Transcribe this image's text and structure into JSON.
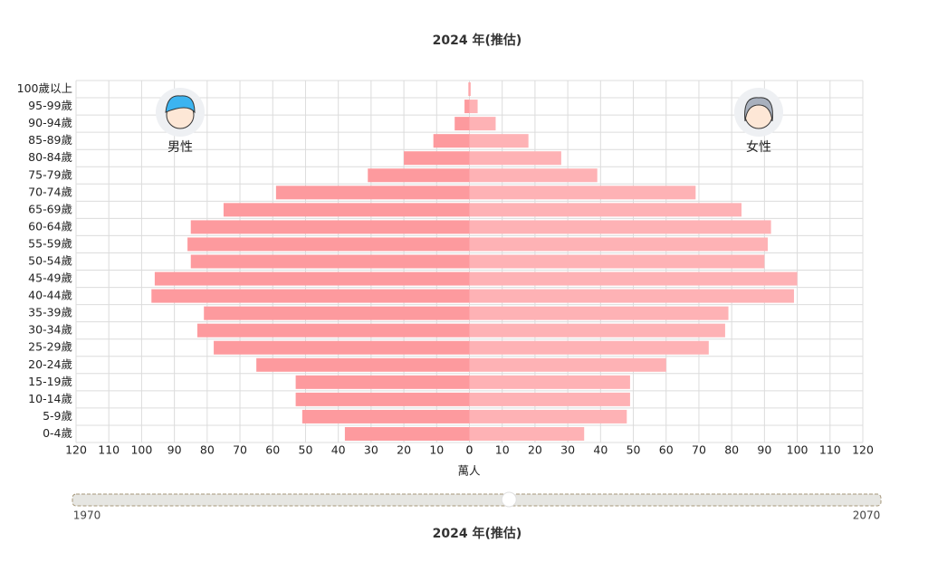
{
  "chart_data": {
    "type": "pyramid",
    "title": "2024 年(推估)",
    "x_label": "萬人",
    "categories": [
      "0-4歲",
      "5-9歲",
      "10-14歲",
      "15-19歲",
      "20-24歲",
      "25-29歲",
      "30-34歲",
      "35-39歲",
      "40-44歲",
      "45-49歲",
      "50-54歲",
      "55-59歲",
      "60-64歲",
      "65-69歲",
      "70-74歲",
      "75-79歲",
      "80-84歲",
      "85-89歲",
      "90-94歲",
      "95-99歲",
      "100歲以上"
    ],
    "series": [
      {
        "name": "男性",
        "color": "#fd9a9e",
        "values": [
          38,
          51,
          53,
          53,
          65,
          78,
          83,
          81,
          97,
          96,
          85,
          86,
          85,
          75,
          59,
          31,
          20,
          11,
          4.5,
          1.5,
          0.3
        ]
      },
      {
        "name": "女性",
        "color": "#feb2b5",
        "values": [
          35,
          48,
          49,
          49,
          60,
          73,
          78,
          79,
          99,
          100,
          90,
          91,
          92,
          83,
          69,
          39,
          28,
          18,
          8,
          2.5,
          0.4
        ]
      }
    ],
    "xlim": [
      0,
      120
    ],
    "xticks": [
      0,
      10,
      20,
      30,
      40,
      50,
      60,
      70,
      80,
      90,
      100,
      110,
      120
    ],
    "grid": true
  },
  "slider": {
    "min": 1970,
    "max": 2070,
    "value": 2024,
    "title": "2024 年(推估)"
  }
}
